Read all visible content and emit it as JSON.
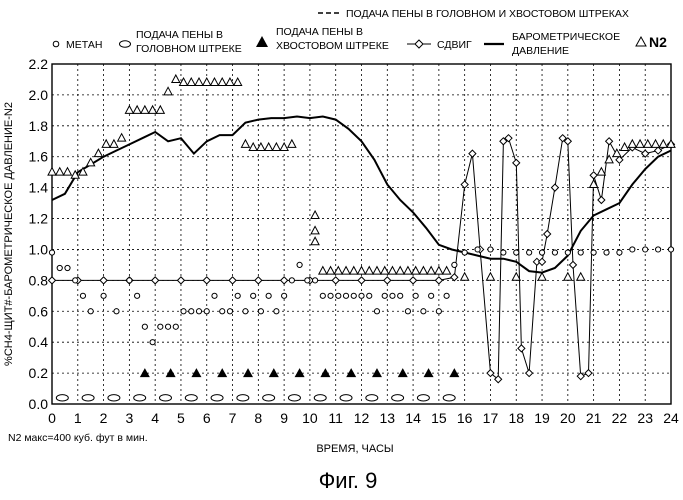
{
  "figure_caption": "Фиг. 9",
  "footnote": "N2 макс=400 куб. фут в мин.",
  "chart_data": {
    "type": "line",
    "title": "",
    "xlabel": "ВРЕМЯ, ЧАСЫ",
    "ylabel": "%CH4-ЩИТ#-БАРОМЕТРИЧЕСКОЕ ДАВЛЕНИЕ-N2",
    "xlim": [
      0,
      24
    ],
    "ylim": [
      0,
      2.2
    ],
    "x_ticks": [
      "0",
      "1",
      "2",
      "3",
      "4",
      "5",
      "6",
      "7",
      "8",
      "9",
      "10",
      "11",
      "12",
      "13",
      "14",
      "15",
      "16",
      "17",
      "18",
      "19",
      "20",
      "21",
      "22",
      "23",
      "24"
    ],
    "y_ticks": [
      "0.0",
      "0.2",
      "0.4",
      "0.6",
      "0.8",
      "1.0",
      "1.2",
      "1.4",
      "1.6",
      "1.8",
      "2.0",
      "2.2"
    ],
    "grid": true,
    "legend": {
      "top_line": "ПОДАЧА ПЕНЫ В ГОЛОВНОМ И ХВОСТОВОМ ШТРЕКАХ",
      "methane": "МЕТАН",
      "foam_head_1": "ПОДАЧА ПЕНЫ В",
      "foam_head_2": "ГОЛОВНОМ ШТРЕКЕ",
      "foam_tail_1": "ПОДАЧА ПЕНЫ В",
      "foam_tail_2": "ХВОСТОВОМ ШТРЕКЕ",
      "shift": "СДВИГ",
      "baro_1": "БАРОМЕТРИЧЕСКОЕ",
      "baro_2": "ДАВЛЕНИЕ",
      "n2": "N2"
    },
    "series": [
      {
        "name": "БАРОМЕТРИЧЕСКОЕ ДАВЛЕНИЕ",
        "kind": "line",
        "x": [
          0,
          0.5,
          1,
          1.5,
          2,
          2.5,
          3,
          3.5,
          4,
          4.5,
          5,
          5.5,
          6,
          6.5,
          7,
          7.5,
          8,
          8.5,
          9,
          9.5,
          10,
          10.5,
          11,
          11.5,
          12,
          12.5,
          13,
          13.5,
          14,
          14.5,
          15,
          15.5,
          16,
          16.5,
          17,
          17.5,
          18,
          18.5,
          19,
          19.5,
          20,
          20.5,
          21,
          21.5,
          22,
          22.5,
          23,
          23.5,
          24
        ],
        "y": [
          1.32,
          1.36,
          1.5,
          1.55,
          1.6,
          1.64,
          1.68,
          1.72,
          1.76,
          1.7,
          1.72,
          1.62,
          1.7,
          1.74,
          1.74,
          1.82,
          1.84,
          1.85,
          1.85,
          1.86,
          1.85,
          1.86,
          1.84,
          1.78,
          1.7,
          1.58,
          1.42,
          1.32,
          1.24,
          1.14,
          1.03,
          1.0,
          0.98,
          0.96,
          0.94,
          0.94,
          0.92,
          0.86,
          0.85,
          0.88,
          0.96,
          1.12,
          1.22,
          1.26,
          1.3,
          1.42,
          1.52,
          1.6,
          1.64
        ]
      },
      {
        "name": "N2",
        "kind": "open-triangle",
        "x": [
          0,
          0.3,
          0.6,
          0.9,
          1.2,
          1.5,
          1.8,
          2.1,
          2.4,
          2.7,
          3,
          3.3,
          3.6,
          3.9,
          4.2,
          4.5,
          4.8,
          5.1,
          5.4,
          5.7,
          6,
          6.3,
          6.6,
          6.9,
          7.2,
          7.5,
          7.8,
          8.1,
          8.4,
          8.7,
          9,
          9.3,
          10.2,
          10.2,
          10.2,
          10.5,
          10.8,
          11.1,
          11.4,
          11.7,
          12,
          12.3,
          12.6,
          12.9,
          13.2,
          13.5,
          13.8,
          14.1,
          14.4,
          14.7,
          15,
          15.3,
          16,
          17,
          18,
          19,
          20,
          20.5,
          21,
          21.3,
          21.6,
          21.9,
          22.2,
          22.5,
          22.8,
          23.1,
          23.4,
          23.7,
          24
        ],
        "y": [
          1.5,
          1.5,
          1.5,
          1.48,
          1.5,
          1.56,
          1.62,
          1.68,
          1.68,
          1.72,
          1.9,
          1.9,
          1.9,
          1.9,
          1.9,
          2.02,
          2.1,
          2.08,
          2.08,
          2.08,
          2.08,
          2.08,
          2.08,
          2.08,
          2.08,
          1.68,
          1.66,
          1.66,
          1.66,
          1.66,
          1.66,
          1.68,
          1.22,
          1.12,
          1.05,
          0.86,
          0.86,
          0.86,
          0.86,
          0.86,
          0.86,
          0.86,
          0.86,
          0.86,
          0.86,
          0.86,
          0.86,
          0.86,
          0.86,
          0.86,
          0.86,
          0.86,
          0.82,
          0.82,
          0.82,
          0.82,
          0.82,
          0.82,
          1.42,
          1.5,
          1.58,
          1.62,
          1.66,
          1.68,
          1.68,
          1.68,
          1.68,
          1.68,
          1.68
        ]
      },
      {
        "name": "СДВИГ",
        "kind": "diamond-line",
        "x": [
          0,
          1,
          2,
          3,
          4,
          5,
          6,
          7,
          8,
          9,
          10,
          11,
          12,
          13,
          14,
          15,
          15.6,
          16,
          16.3,
          16.6,
          17,
          17.3,
          17.5,
          17.7,
          18,
          18.2,
          18.5,
          18.8,
          19,
          19.2,
          19.5,
          19.8,
          20,
          20.2,
          20.5,
          20.8,
          21,
          21.3,
          21.6,
          22,
          22.5,
          23,
          23.5,
          24
        ],
        "y": [
          0.8,
          0.8,
          0.8,
          0.8,
          0.8,
          0.8,
          0.8,
          0.8,
          0.8,
          0.8,
          0.8,
          0.8,
          0.8,
          0.8,
          0.8,
          0.8,
          0.82,
          1.42,
          1.62,
          1.0,
          0.2,
          0.16,
          1.7,
          1.72,
          1.56,
          0.36,
          0.2,
          0.92,
          0.92,
          1.1,
          1.4,
          1.72,
          1.7,
          0.9,
          0.18,
          0.2,
          1.48,
          1.32,
          1.7,
          1.58,
          1.66,
          1.62,
          1.64,
          1.68
        ]
      },
      {
        "name": "ПОДАЧА ПЕНЫ В ХВОСТОВОМ ШТРЕКЕ",
        "kind": "filled-triangle",
        "x": [
          3.6,
          4.6,
          5.6,
          6.6,
          7.6,
          8.6,
          9.6,
          10.6,
          11.6,
          12.6,
          13.6,
          14.6,
          15.6
        ],
        "y": [
          0.2,
          0.2,
          0.2,
          0.2,
          0.2,
          0.2,
          0.2,
          0.2,
          0.2,
          0.2,
          0.2,
          0.2,
          0.2
        ]
      },
      {
        "name": "ПОДАЧА ПЕНЫ В ГОЛОВНОМ ШТРЕКЕ",
        "kind": "open-ellipse",
        "x": [
          0.4,
          1.4,
          2.4,
          3.4,
          4.4,
          5.4,
          6.4,
          7.4,
          8.4,
          9.4,
          10.4,
          11.4,
          12.4,
          13.4,
          14.4,
          15.4
        ],
        "y": [
          0.04,
          0.04,
          0.04,
          0.04,
          0.04,
          0.04,
          0.04,
          0.04,
          0.04,
          0.04,
          0.04,
          0.04,
          0.04,
          0.04,
          0.04,
          0.04
        ]
      },
      {
        "name": "МЕТАН",
        "kind": "open-circle",
        "x": [
          0,
          0.3,
          0.6,
          0.9,
          1.2,
          1.5,
          2,
          2.5,
          3,
          3.3,
          3.6,
          3.9,
          4.2,
          4.5,
          4.8,
          5.1,
          5.4,
          5.7,
          6,
          6.3,
          6.6,
          6.9,
          7.2,
          7.5,
          7.8,
          8.1,
          8.4,
          8.7,
          9,
          9.3,
          9.6,
          9.9,
          10.2,
          10.5,
          10.8,
          11.1,
          11.4,
          11.7,
          12,
          12.3,
          12.6,
          12.9,
          13.2,
          13.5,
          13.8,
          14.1,
          14.4,
          14.7,
          15,
          15.3,
          15.6,
          16,
          16.5,
          17,
          17.5,
          18,
          18.5,
          19,
          19.5,
          20,
          20.5,
          21,
          21.5,
          22,
          22.5,
          23,
          23.5,
          24
        ],
        "y": [
          0.98,
          0.88,
          0.88,
          0.8,
          0.7,
          0.6,
          0.7,
          0.6,
          0.8,
          0.7,
          0.5,
          0.4,
          0.5,
          0.5,
          0.5,
          0.6,
          0.6,
          0.6,
          0.6,
          0.7,
          0.6,
          0.6,
          0.7,
          0.6,
          0.7,
          0.6,
          0.7,
          0.6,
          0.7,
          0.8,
          0.9,
          0.8,
          0.8,
          0.7,
          0.7,
          0.7,
          0.7,
          0.7,
          0.7,
          0.7,
          0.6,
          0.7,
          0.7,
          0.7,
          0.6,
          0.7,
          0.6,
          0.7,
          0.6,
          0.7,
          0.9,
          0.98,
          1.0,
          1.0,
          0.98,
          0.98,
          0.98,
          0.98,
          0.98,
          0.98,
          0.98,
          0.98,
          0.98,
          0.98,
          1.0,
          1.0,
          1.0,
          1.0
        ]
      }
    ]
  }
}
